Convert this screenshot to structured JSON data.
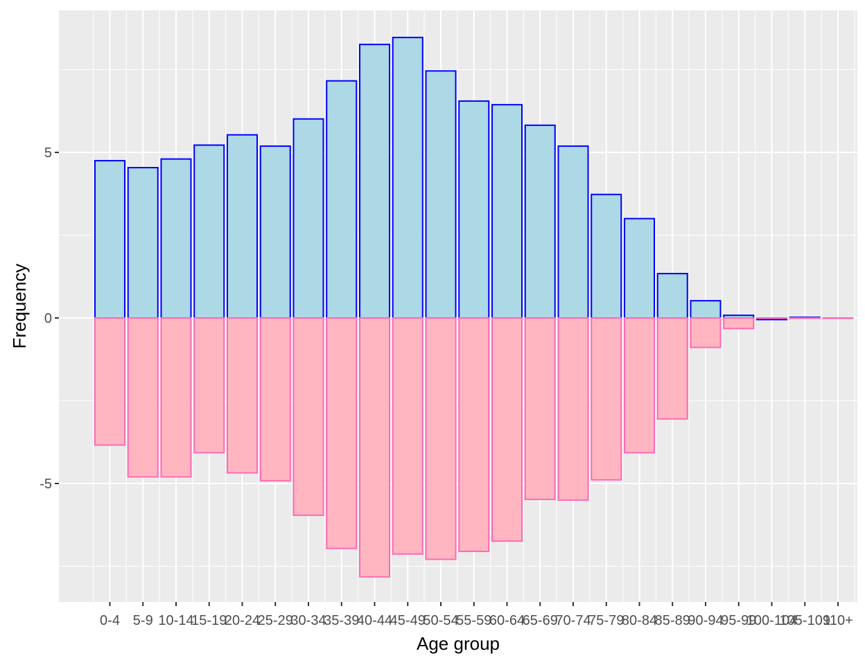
{
  "chart_data": {
    "type": "bar",
    "xlabel": "Age group",
    "ylabel": "Frequency",
    "categories": [
      "0-4",
      "5-9",
      "10-14",
      "15-19",
      "20-24",
      "25-29",
      "30-34",
      "35-39",
      "40-44",
      "45-49",
      "50-54",
      "55-59",
      "60-64",
      "65-69",
      "70-74",
      "75-79",
      "80-84",
      "85-89",
      "90-94",
      "95-99",
      "100-104",
      "105-109",
      "110+"
    ],
    "series": [
      {
        "values": [
          4.75,
          4.54,
          4.8,
          5.22,
          5.53,
          5.19,
          6.01,
          7.16,
          8.26,
          8.47,
          7.46,
          6.55,
          6.44,
          5.82,
          5.19,
          3.73,
          3.0,
          1.34,
          0.52,
          0.08,
          -0.05,
          0.02,
          0.0
        ],
        "fill": "#add8e6",
        "stroke": "#0000ff"
      },
      {
        "values": [
          -3.84,
          -4.8,
          -4.8,
          -4.07,
          -4.68,
          -4.92,
          -5.96,
          -6.96,
          -7.82,
          -7.13,
          -7.29,
          -7.05,
          -6.74,
          -5.48,
          -5.5,
          -4.89,
          -4.07,
          -3.05,
          -0.89,
          -0.32,
          0.0,
          0.0,
          0.0
        ],
        "fill": "#ffb6c1",
        "stroke": "#ff69b4"
      }
    ],
    "yticks": [
      -5,
      0,
      5
    ],
    "ylim": [
      -8.6,
      9.1
    ],
    "grid": true,
    "panel_background": "#ebebeb",
    "grid_color": "#ffffff"
  }
}
